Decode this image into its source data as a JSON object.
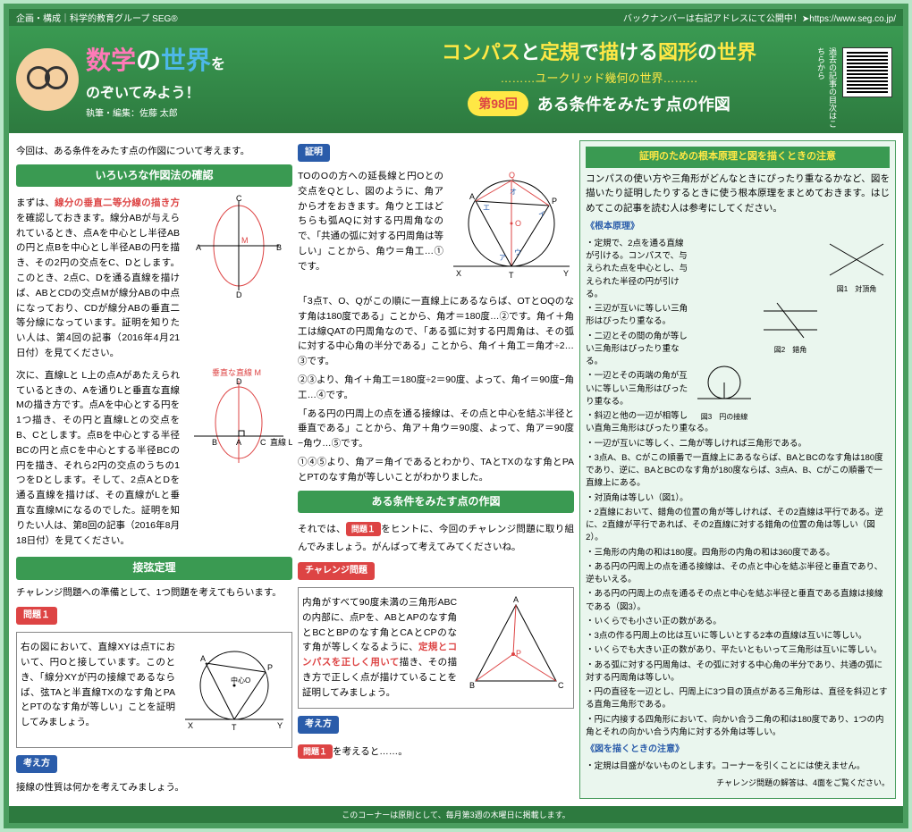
{
  "header": {
    "topLeft": "企画・構成｜科学的教育グループ SEG®",
    "topRight": "バックナンバーは右記アドレスにて公開中！➤https://www.seg.co.jp/",
    "mainTitle1": "数学",
    "mainTitle2": "の",
    "mainTitle3": "世界",
    "mainTitle4": "を",
    "subtitle": "のぞいてみよう！",
    "author": "執筆・編集：佐藤 太郎",
    "theme1": "コンパス",
    "theme2": "と",
    "theme3": "定規",
    "theme4": "で",
    "theme5": "描",
    "theme6": "ける",
    "theme7": "図形",
    "theme8": "の",
    "theme9": "世界",
    "subTheme": "………ユークリッド幾何の世界………",
    "episodeNum": "第98回",
    "episodeTitle": "ある条件をみたす点の作図",
    "qrNote": "過去の記事の目次はこちらから"
  },
  "col1": {
    "intro": "今回は、ある条件をみたす点の作図について考えます。",
    "h1": "いろいろな作図法の確認",
    "p1a": "まずは、",
    "p1em": "線分の垂直二等分線の描き方",
    "p1b": "を確認しておきます。線分ABが与えられているとき、点Aを中心とし半径ABの円と点Bを中心とし半径ABの円を描き、その2円の交点をC、Dとします。このとき、2点C、Dを通る直線を描けば、ABとCDの交点Mが線分ABの中点になっており、CDが線分ABの垂直二等分線になっています。証明を知りたい人は、第4回の記事（2016年4月21日付）を見てください。",
    "p2a": "次に、直線Lと L上の点Aがあたえられているときの、Aを通りLと垂直な直線Mの描き方です。点Aを中心とする円を1つ描き、その円と直線Lとの交点をB、Cとします。点Bを中心とする半径BCの円と点Cを中心とする半径BCの円を描き、それら2円の交点のうちの1つをDとします。そして、2点AとDを通る直線を描けば、その直線がLと垂直な直線Mになるのでした。証明を知りたい人は、第8回の記事（2016年8月18日付）を見てください。",
    "fig2Label1": "垂直な直線 M",
    "fig2Label2": "直線 L",
    "h2": "接弦定理",
    "p3": "チャレンジ問題への準備として、1つ問題を考えてもらいます。",
    "badge1": "問題１",
    "p4": "右の図において、直線XYは点Tにおいて、円Oと接しています。このとき、「線分XYが円の接線であるならば、弦TAと半直線TXのなす角とPAとPTのなす角が等しい」ことを証明してみましょう。",
    "badge2": "考え方",
    "p5": "接線の性質は何かを考えてみましょう。"
  },
  "col2": {
    "badge1": "証明",
    "p1": "TOのOの方への延長線と円Oとの交点をQとし、図のように、角アから才をおきます。角ウと工はどちらも弧AQに対する円周角なので、「共通の弧に対する円周角は等しい」ことから、角ウ＝角工…①です。",
    "p2": "「3点T、O、Qがこの順に一直線上にあるならば、OTとOQのなす角は180度である」ことから、角才＝180度…②です。角イ＋角工は線QATの円周角なので、「ある弧に対する円周角は、その弧に対する中心角の半分である」ことから、角イ＋角工＝角才÷2…③です。",
    "p3": "②③より、角イ＋角工＝180度÷2＝90度、よって、角イ＝90度−角工…④です。",
    "p4": "「ある円の円周上の点を通る接線は、その点と中心を結ぶ半径と垂直である」ことから、角ア＋角ウ＝90度、よって、角ア＝90度−角ウ…⑤です。",
    "p5": "①④⑤より、角ア＝角イであるとわかり、TAとTXのなす角とPAとPTのなす角が等しいことがわかりました。",
    "h1": "ある条件をみたす点の作図",
    "p6a": "それでは、",
    "p6em": "問題１",
    "p6b": "をヒントに、今回のチャレンジ問題に取り組んでみましょう。がんばって考えてみてくださいね。",
    "badge2": "チャレンジ問題",
    "p7a": "内角がすべて90度未満の三角形ABCの内部に、点Pを、ABとAPのなす角とBCとBPのなす角とCAとCPのなす角が等しくなるように、",
    "p7em": "定規とコンパスを正しく用いて",
    "p7b": "描き、その描き方で正しく点が描けていることを証明してみましょう。",
    "badge3": "考え方",
    "badge4": "問題１",
    "p8": "を考えると……。"
  },
  "col3": {
    "h": "証明のための根本原理と図を描くときの注意",
    "intro": "コンパスの使い方や三角形がどんなときにぴったり重なるかなど、図を描いたり証明したりするときに使う根本原理をまとめておきます。はじめてこの記事を読む人は参考にしてください。",
    "sub1": "《根本原理》",
    "items1": [
      "・定規で、2点を通る直線が引ける。コンパスで、与えられた点を中心とし、与えられた半径の円が引ける。",
      "・三辺が互いに等しい三角形はぴったり重なる。",
      "・二辺とその間の角が等しい三角形はぴったり重なる。",
      "・一辺とその両端の角が互いに等しい三角形はぴったり重なる。",
      "・斜辺と他の一辺が相等しい直角三角形はぴったり重なる。",
      "・一辺が互いに等しく、二角が等しければ三角形である。",
      "・3点A、B、Cがこの順番で一直線上にあるならば、BAとBCのなす角は180度であり、逆に、BAとBCのなす角が180度ならば、3点A、B、Cがこの順番で一直線上にある。",
      "・対頂角は等しい（図1）。",
      "・2直線において、錯角の位置の角が等しければ、その2直線は平行である。逆に、2直線が平行であれば、その2直線に対する錯角の位置の角は等しい（図2）。",
      "・三角形の内角の和は180度。四角形の内角の和は360度である。",
      "・ある円の円周上の点を通る接線は、その点と中心を結ぶ半径と垂直であり、逆もいえる。",
      "・ある円の円周上の点を通るその点と中心を結ぶ半径と垂直である直線は接線である（図3）。",
      "・いくらでも小さい正の数がある。",
      "・3点の作る円周上の比は互いに等しいとする2本の直線は互いに等しい。",
      "・いくらでも大きい正の数があり、平たいともいって三角形は互いに等しい。",
      "・ある弧に対する円周角は、その弧に対する中心角の半分であり、共通の弧に対する円周角は等しい。",
      "・円の直径を一辺とし、円周上に3つ目の頂点がある三角形は、直径を斜辺とする直角三角形である。",
      "・円に内接する四角形において、向かい合う二角の和は180度であり、1つの内角とそれの向かい合う内角に対する外角は等しい。"
    ],
    "sub2": "《図を描くときの注意》",
    "items2": [
      "・定規は目盛がないものとします。コーナーを引くことには使えません。"
    ],
    "fig1": "図1　対頂角",
    "fig2": "図2　錯角",
    "fig3": "図3　円の接線",
    "note": "チャレンジ問題の解答は、4面をご覧ください。"
  },
  "footer": "このコーナーは原則として、毎月第3週の木曜日に掲載します。",
  "colors": {
    "green": "#3a9a52",
    "darkGreen": "#2d7a3f",
    "yellow": "#ffe845",
    "red": "#d44",
    "blue": "#2a5caa",
    "pink": "#ff7ab8",
    "lblue": "#4db8e8"
  }
}
